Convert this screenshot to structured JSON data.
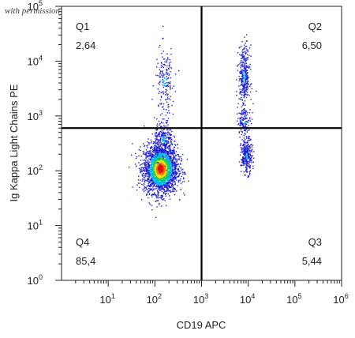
{
  "watermark": "with permission from OriGene",
  "chart_data": {
    "type": "scatter",
    "xlabel": "CD19 APC",
    "ylabel": "Ig Kappa Light Chains PE",
    "xscale": "log",
    "yscale": "log",
    "xlim": [
      1,
      1000000
    ],
    "ylim": [
      1,
      100000
    ],
    "xticks": [
      {
        "value": 10,
        "base": "10",
        "exp": "1"
      },
      {
        "value": 100,
        "base": "10",
        "exp": "2"
      },
      {
        "value": 1000,
        "base": "10",
        "exp": "3"
      },
      {
        "value": 10000,
        "base": "10",
        "exp": "4"
      },
      {
        "value": 100000,
        "base": "10",
        "exp": "5"
      },
      {
        "value": 1000000,
        "base": "10",
        "exp": "6"
      }
    ],
    "yticks": [
      {
        "value": 1,
        "base": "10",
        "exp": "0"
      },
      {
        "value": 10,
        "base": "10",
        "exp": "1"
      },
      {
        "value": 100,
        "base": "10",
        "exp": "2"
      },
      {
        "value": 1000,
        "base": "10",
        "exp": "3"
      },
      {
        "value": 10000,
        "base": "10",
        "exp": "4"
      },
      {
        "value": 100000,
        "base": "10",
        "exp": "5"
      }
    ],
    "gate": {
      "x": 1000,
      "y": 600
    },
    "quadrants": [
      {
        "name": "Q1",
        "percent": "2,64",
        "position": "top-left"
      },
      {
        "name": "Q2",
        "percent": "6,50",
        "position": "top-right"
      },
      {
        "name": "Q3",
        "percent": "5,44",
        "position": "bottom-right"
      },
      {
        "name": "Q4",
        "percent": "85,4",
        "position": "bottom-left"
      }
    ],
    "density_colors": [
      "#1f1fd6",
      "#00b7e6",
      "#22d24a",
      "#f0e11c",
      "#ff7a00",
      "#e01010"
    ],
    "populations": [
      {
        "label": "Q4 population",
        "center_x": 130,
        "center_y": 110,
        "spread_x": 0.18,
        "spread_y": 0.22,
        "count": 2600
      },
      {
        "label": "Q4 tail up",
        "center_x": 150,
        "center_y": 380,
        "spread_x": 0.1,
        "spread_y": 0.18,
        "count": 260
      },
      {
        "label": "Q1 population",
        "center_x": 160,
        "center_y": 4500,
        "spread_x": 0.1,
        "spread_y": 0.3,
        "count": 170
      },
      {
        "label": "Q2 population",
        "center_x": 8000,
        "center_y": 5200,
        "spread_x": 0.06,
        "spread_y": 0.28,
        "count": 360
      },
      {
        "label": "Q3 population",
        "center_x": 9000,
        "center_y": 190,
        "spread_x": 0.06,
        "spread_y": 0.16,
        "count": 300
      },
      {
        "label": "Q2 lower",
        "center_x": 8000,
        "center_y": 800,
        "spread_x": 0.07,
        "spread_y": 0.12,
        "count": 120
      }
    ]
  }
}
